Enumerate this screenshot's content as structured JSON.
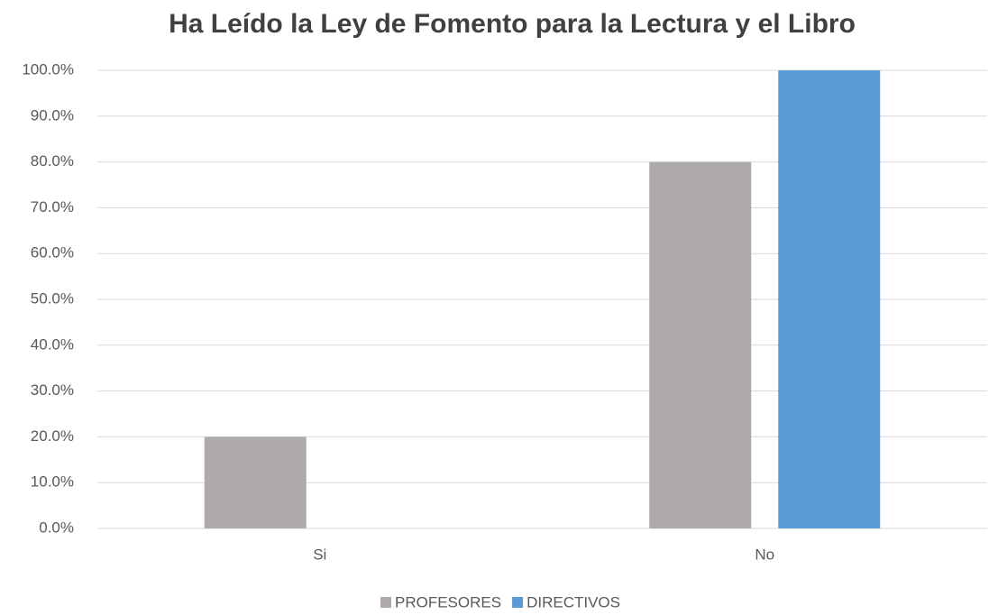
{
  "chart_data": {
    "type": "bar",
    "title": "Ha Leído la Ley de Fomento para la Lectura y el Libro",
    "categories": [
      "Si",
      "No"
    ],
    "series": [
      {
        "name": "PROFESORES",
        "color": "#aeaaaa",
        "values": [
          20,
          80
        ]
      },
      {
        "name": "DIRECTIVOS",
        "color": "#5b9bd5",
        "values": [
          0,
          100
        ]
      }
    ],
    "ylim": [
      0,
      100
    ],
    "yticks": [
      {
        "value": 0,
        "label": "0.0%"
      },
      {
        "value": 10,
        "label": "10.0%"
      },
      {
        "value": 20,
        "label": "20.0%"
      },
      {
        "value": 30,
        "label": "30.0%"
      },
      {
        "value": 40,
        "label": "40.0%"
      },
      {
        "value": 50,
        "label": "50.0%"
      },
      {
        "value": 60,
        "label": "60.0%"
      },
      {
        "value": 70,
        "label": "70.0%"
      },
      {
        "value": 80,
        "label": "80.0%"
      },
      {
        "value": 90,
        "label": "90.0%"
      },
      {
        "value": 100,
        "label": "100.0%"
      }
    ],
    "grid": true,
    "legend": "bottom"
  }
}
